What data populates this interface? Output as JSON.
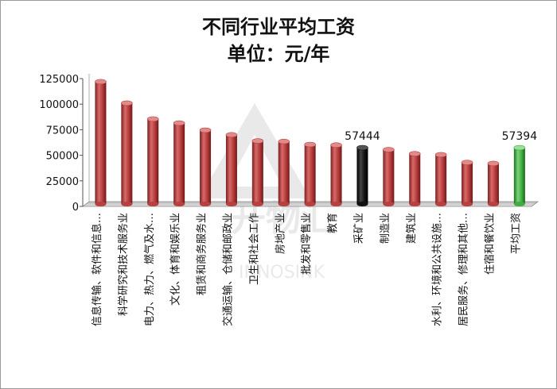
{
  "chart_data": {
    "type": "bar",
    "title": "不同行业平均工资",
    "subtitle": "单位：元/年",
    "ylim": [
      0,
      125000
    ],
    "yticks": [
      "0",
      "25000",
      "50000",
      "75000",
      "100000",
      "125000"
    ],
    "grid": false,
    "categories": [
      "信息传输、软件和信息…",
      "科学研究和技术服务业",
      "电力、热力、燃气及水…",
      "文化、体育和娱乐业",
      "租赁和商务服务业",
      "交通运输、仓储和邮政业",
      "卫生和社会工作",
      "房地产业",
      "批发和零售业",
      "教育",
      "采矿业",
      "制造业",
      "建筑业",
      "水利、环境和公共设施…",
      "居民服务、修理和其他…",
      "住宿和餐饮业",
      "平均工资"
    ],
    "values": [
      122000,
      101000,
      85500,
      81500,
      74500,
      70000,
      64000,
      63500,
      60500,
      60000,
      57444,
      55500,
      51500,
      50500,
      43000,
      42000,
      57394
    ],
    "colors": {
      "default": "#b84040",
      "highlight_mining": "#111111",
      "highlight_average": "#3fae3f"
    },
    "highlight": {
      "采矿业": "highlight_mining",
      "平均工资": "highlight_average"
    },
    "data_labels": {
      "采矿业": "57444",
      "平均工资": "57394"
    }
  }
}
